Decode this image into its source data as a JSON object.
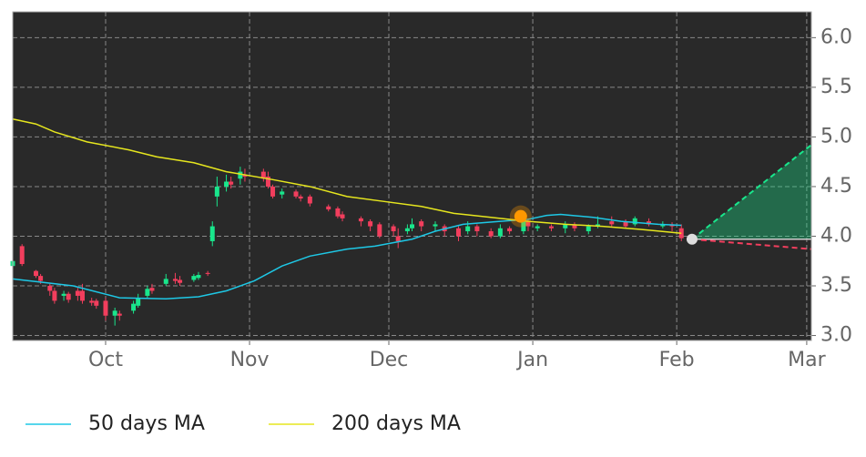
{
  "chart_data": {
    "type": "candlestick",
    "xlim": [
      0,
      172
    ],
    "xticks": [
      {
        "value": 20,
        "label": "Oct"
      },
      {
        "value": 51,
        "label": "Nov"
      },
      {
        "value": 81,
        "label": "Dec"
      },
      {
        "value": 112,
        "label": "Jan"
      },
      {
        "value": 143,
        "label": "Feb"
      },
      {
        "value": 171,
        "label": "Mar"
      }
    ],
    "ylim": [
      2.95,
      6.26
    ],
    "yticks": [
      {
        "value": 3,
        "label": "3.0"
      },
      3.5,
      {
        "value": 4,
        "label": "4.0"
      },
      4.5,
      {
        "value": 5,
        "label": "5.0"
      },
      5.5,
      {
        "value": 6,
        "label": "6.0"
      }
    ],
    "grid": true,
    "up_color": "#19e68c",
    "down_color": "#f23e5d",
    "x": [
      0,
      2,
      5,
      6,
      8,
      9,
      11,
      12,
      14,
      15,
      17,
      18,
      20,
      22,
      23,
      26,
      27,
      29,
      30,
      33,
      35,
      36,
      39,
      40,
      42,
      43,
      44,
      46,
      47,
      49,
      50,
      54,
      55,
      56,
      58,
      61,
      62,
      64,
      68,
      70,
      71,
      75,
      77,
      79,
      82,
      83,
      85,
      86,
      88,
      91,
      93,
      96,
      98,
      100,
      103,
      105,
      107,
      110,
      111,
      113,
      116,
      119,
      121,
      124,
      126,
      129,
      132,
      134,
      137,
      140,
      142,
      144
    ],
    "open": [
      3.7,
      3.9,
      3.65,
      3.6,
      3.5,
      3.45,
      3.4,
      3.42,
      3.45,
      3.45,
      3.35,
      3.35,
      3.35,
      3.2,
      3.22,
      3.25,
      3.3,
      3.4,
      3.48,
      3.52,
      3.57,
      3.56,
      3.56,
      3.58,
      3.63,
      3.95,
      4.4,
      4.5,
      4.55,
      4.58,
      4.62,
      4.65,
      4.6,
      4.5,
      4.42,
      4.45,
      4.4,
      4.4,
      4.3,
      4.28,
      4.22,
      4.18,
      4.15,
      4.12,
      4.1,
      4.0,
      4.05,
      4.08,
      4.15,
      4.1,
      4.1,
      4.08,
      4.05,
      4.1,
      4.05,
      4.0,
      4.08,
      4.05,
      4.15,
      4.08,
      4.1,
      4.08,
      4.12,
      4.05,
      4.1,
      4.15,
      4.15,
      4.12,
      4.15,
      4.1,
      4.12,
      4.08
    ],
    "high": [
      3.78,
      3.92,
      3.66,
      3.62,
      3.52,
      3.48,
      3.45,
      3.44,
      3.48,
      3.52,
      3.38,
      3.37,
      3.38,
      3.28,
      3.25,
      3.35,
      3.42,
      3.5,
      3.52,
      3.62,
      3.63,
      3.6,
      3.62,
      3.64,
      3.65,
      4.15,
      4.6,
      4.62,
      4.6,
      4.7,
      4.68,
      4.68,
      4.65,
      4.52,
      4.48,
      4.47,
      4.42,
      4.42,
      4.32,
      4.3,
      4.25,
      4.2,
      4.17,
      4.14,
      4.12,
      4.08,
      4.12,
      4.18,
      4.17,
      4.15,
      4.12,
      4.1,
      4.15,
      4.12,
      4.08,
      4.12,
      4.1,
      4.2,
      4.18,
      4.12,
      4.12,
      4.15,
      4.14,
      4.12,
      4.2,
      4.2,
      4.17,
      4.2,
      4.18,
      4.15,
      4.14,
      4.12
    ],
    "low": [
      3.68,
      3.7,
      3.58,
      3.52,
      3.4,
      3.32,
      3.35,
      3.33,
      3.35,
      3.32,
      3.3,
      3.27,
      3.15,
      3.1,
      3.15,
      3.22,
      3.28,
      3.38,
      3.42,
      3.5,
      3.52,
      3.5,
      3.54,
      3.56,
      3.6,
      3.9,
      4.3,
      4.45,
      4.48,
      4.52,
      4.55,
      4.55,
      4.48,
      4.38,
      4.38,
      4.38,
      4.35,
      4.3,
      4.25,
      4.18,
      4.15,
      4.1,
      4.05,
      3.98,
      4.0,
      3.88,
      4.02,
      4.05,
      4.05,
      4.05,
      4.0,
      3.95,
      4.02,
      4.0,
      3.98,
      3.98,
      4.02,
      4.02,
      4.05,
      4.05,
      4.05,
      4.03,
      4.05,
      4.02,
      4.08,
      4.1,
      4.08,
      4.1,
      4.1,
      4.08,
      4.05,
      3.95
    ],
    "close": [
      3.75,
      3.72,
      3.6,
      3.55,
      3.45,
      3.35,
      3.42,
      3.36,
      3.4,
      3.35,
      3.33,
      3.3,
      3.2,
      3.25,
      3.2,
      3.32,
      3.38,
      3.47,
      3.45,
      3.57,
      3.55,
      3.53,
      3.6,
      3.61,
      3.62,
      4.1,
      4.5,
      4.55,
      4.52,
      4.65,
      4.6,
      4.58,
      4.5,
      4.4,
      4.45,
      4.4,
      4.38,
      4.33,
      4.27,
      4.2,
      4.18,
      4.15,
      4.1,
      4.0,
      4.05,
      3.95,
      4.08,
      4.12,
      4.1,
      4.12,
      4.05,
      4.0,
      4.1,
      4.05,
      4.0,
      4.08,
      4.05,
      4.15,
      4.1,
      4.1,
      4.08,
      4.12,
      4.08,
      4.1,
      4.12,
      4.12,
      4.1,
      4.18,
      4.12,
      4.12,
      4.1,
      3.98
    ],
    "series": [
      {
        "name": "50 days MA",
        "color": "#1ec8e6",
        "x": [
          0,
          13,
          23,
          33,
          40,
          46,
          52,
          58,
          64,
          72,
          78,
          86,
          91,
          97,
          105,
          111,
          115,
          118,
          125,
          131,
          139,
          144
        ],
        "values": [
          3.57,
          3.5,
          3.38,
          3.37,
          3.39,
          3.45,
          3.55,
          3.7,
          3.8,
          3.87,
          3.9,
          3.97,
          4.05,
          4.12,
          4.15,
          4.17,
          4.21,
          4.22,
          4.19,
          4.15,
          4.12,
          4.11
        ]
      },
      {
        "name": "200 days MA",
        "color": "#e6e61e",
        "x": [
          0,
          5,
          9,
          16,
          25,
          31,
          39,
          46,
          56,
          64,
          72,
          80,
          88,
          95,
          105,
          111,
          119,
          127,
          135,
          144
        ],
        "values": [
          5.18,
          5.13,
          5.05,
          4.95,
          4.87,
          4.8,
          4.74,
          4.65,
          4.57,
          4.5,
          4.4,
          4.35,
          4.3,
          4.23,
          4.18,
          4.15,
          4.12,
          4.1,
          4.07,
          4.03
        ]
      }
    ],
    "marker": {
      "x": 109.4,
      "value": 4.2,
      "color": "#ff9800"
    },
    "forecast": {
      "x": [
        146.3,
        172
      ],
      "start": 3.97,
      "high": 4.92,
      "low": 3.87,
      "up_color": "#19e68c",
      "down_color": "#f23e5d",
      "start_color": "#dddddd"
    }
  }
}
